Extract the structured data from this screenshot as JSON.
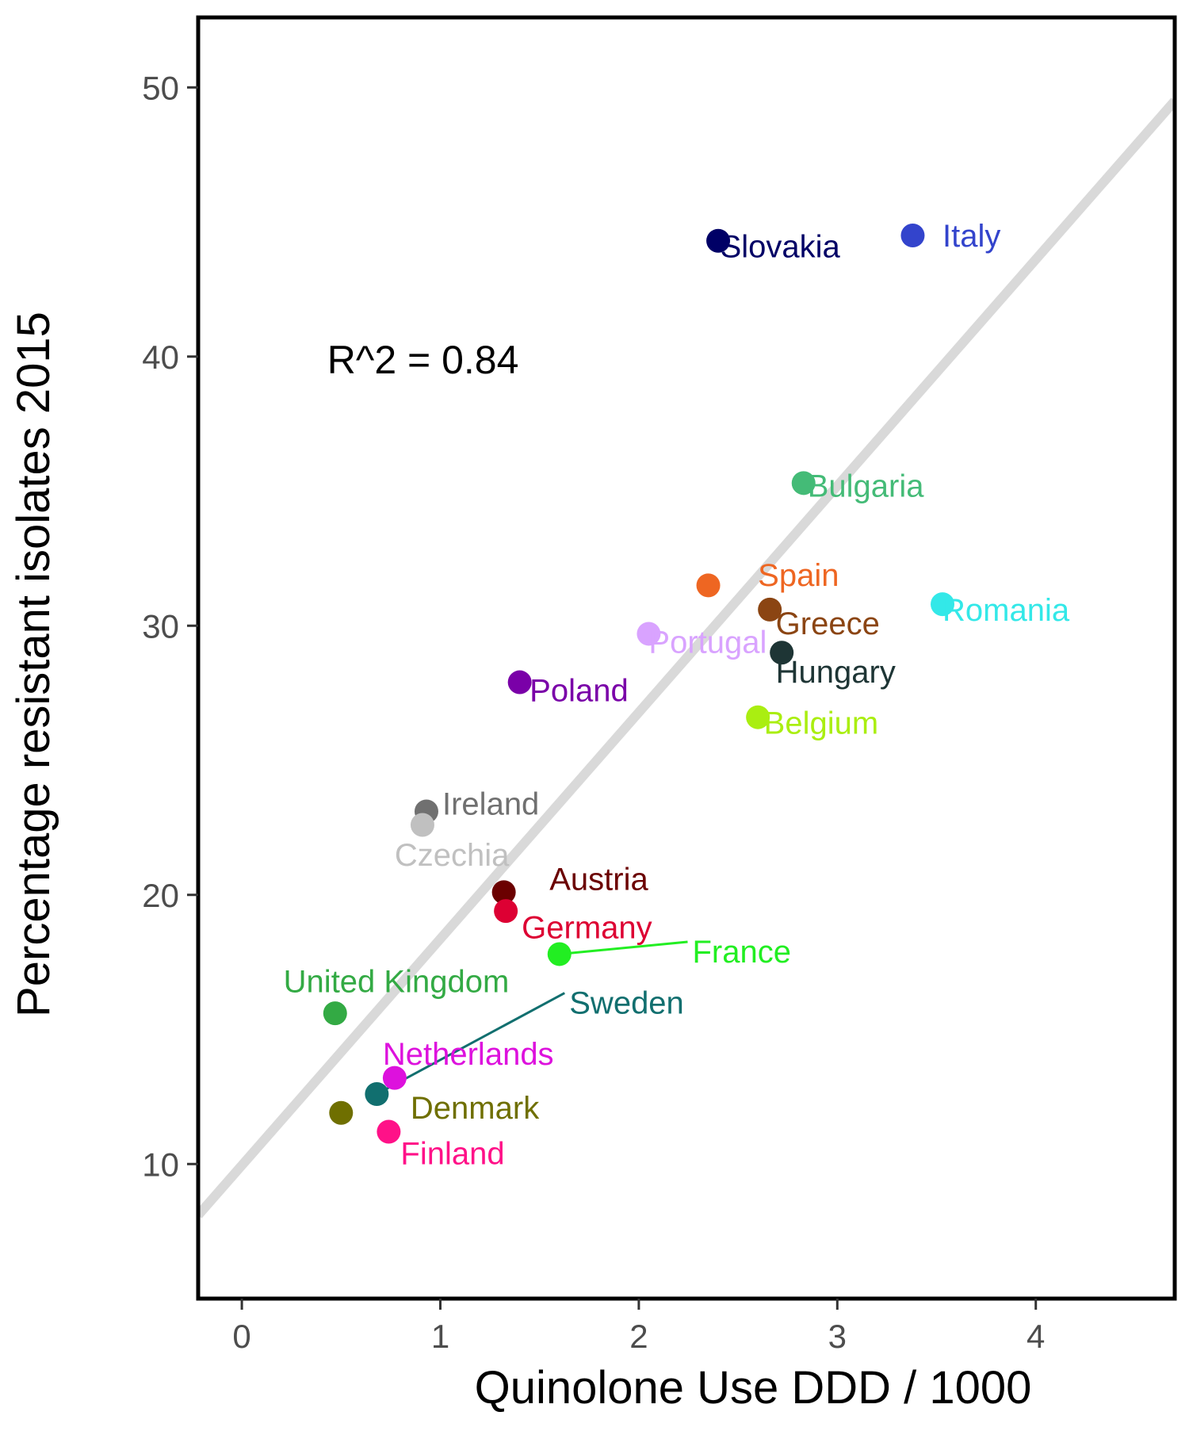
{
  "chart_data": {
    "type": "scatter",
    "title": "",
    "xlabel": "Quinolone Use DDD / 1000",
    "ylabel": "Percentage resistant isolates 2015",
    "xlim": [
      -0.22,
      4.7
    ],
    "ylim": [
      5,
      52.6
    ],
    "x_ticks": [
      0,
      1,
      2,
      3,
      4
    ],
    "y_ticks": [
      10,
      20,
      30,
      40,
      50
    ],
    "grid": false,
    "legend": "none",
    "annotation": "R^2 = 0.84",
    "trend_line": {
      "color": "#d9d9d9",
      "points": [
        [
          -0.22,
          8.1
        ],
        [
          4.7,
          49.5
        ]
      ]
    },
    "points": [
      {
        "label": "Slovakia",
        "x": 2.4,
        "y": 44.3,
        "color": "#000066",
        "label_x": 2.41,
        "label_y": 44.1
      },
      {
        "label": "Italy",
        "x": 3.38,
        "y": 44.5,
        "color": "#3344cc",
        "label_x": 3.53,
        "label_y": 44.5
      },
      {
        "label": "Bulgaria",
        "x": 2.83,
        "y": 35.3,
        "color": "#44bb77",
        "label_x": 2.85,
        "label_y": 35.2
      },
      {
        "label": "Spain",
        "x": 2.35,
        "y": 31.5,
        "color": "#ee6622",
        "label_x": 2.6,
        "label_y": 31.9
      },
      {
        "label": "Greece",
        "x": 2.66,
        "y": 30.6,
        "color": "#8b4513",
        "label_x": 2.69,
        "label_y": 30.1
      },
      {
        "label": "Romania",
        "x": 3.53,
        "y": 30.8,
        "color": "#33e8e8",
        "label_x": 3.53,
        "label_y": 30.6
      },
      {
        "label": "Portugal",
        "x": 2.05,
        "y": 29.7,
        "color": "#d9a3ff",
        "label_x": 2.05,
        "label_y": 29.4
      },
      {
        "label": "Hungary",
        "x": 2.72,
        "y": 29.0,
        "color": "#1e3535",
        "label_x": 2.69,
        "label_y": 28.3
      },
      {
        "label": "Poland",
        "x": 1.4,
        "y": 27.9,
        "color": "#7a00a8",
        "label_x": 1.45,
        "label_y": 27.6
      },
      {
        "label": "Belgium",
        "x": 2.6,
        "y": 26.6,
        "color": "#aaee11",
        "label_x": 2.63,
        "label_y": 26.4
      },
      {
        "label": "Ireland",
        "x": 0.93,
        "y": 23.1,
        "color": "#707070",
        "label_x": 1.01,
        "label_y": 23.4
      },
      {
        "label": "Czechia",
        "x": 0.91,
        "y": 22.6,
        "color": "#c0c0c0",
        "label_x": 0.77,
        "label_y": 21.5
      },
      {
        "label": "Austria",
        "x": 1.32,
        "y": 20.1,
        "color": "#6b0000",
        "label_x": 1.55,
        "label_y": 20.6
      },
      {
        "label": "Germany",
        "x": 1.33,
        "y": 19.4,
        "color": "#dd0033",
        "label_x": 1.41,
        "label_y": 18.8
      },
      {
        "label": "France",
        "x": 1.6,
        "y": 17.8,
        "color": "#22ee22",
        "label_x": 2.27,
        "label_y": 17.9
      },
      {
        "label": "United Kingdom",
        "x": 0.47,
        "y": 15.6,
        "color": "#33aa44",
        "label_x": 0.21,
        "label_y": 16.8
      },
      {
        "label": "Sweden",
        "x": 0.68,
        "y": 12.6,
        "color": "#116f6f",
        "label_x": 1.65,
        "label_y": 16.0
      },
      {
        "label": "Netherlands",
        "x": 0.77,
        "y": 13.2,
        "color": "#dd11dd",
        "label_x": 0.71,
        "label_y": 14.1
      },
      {
        "label": "Denmark",
        "x": 0.5,
        "y": 11.9,
        "color": "#6f6f00",
        "label_x": 0.85,
        "label_y": 12.1
      },
      {
        "label": "Finland",
        "x": 0.74,
        "y": 11.2,
        "color": "#ff1188",
        "label_x": 0.8,
        "label_y": 10.4
      }
    ]
  }
}
